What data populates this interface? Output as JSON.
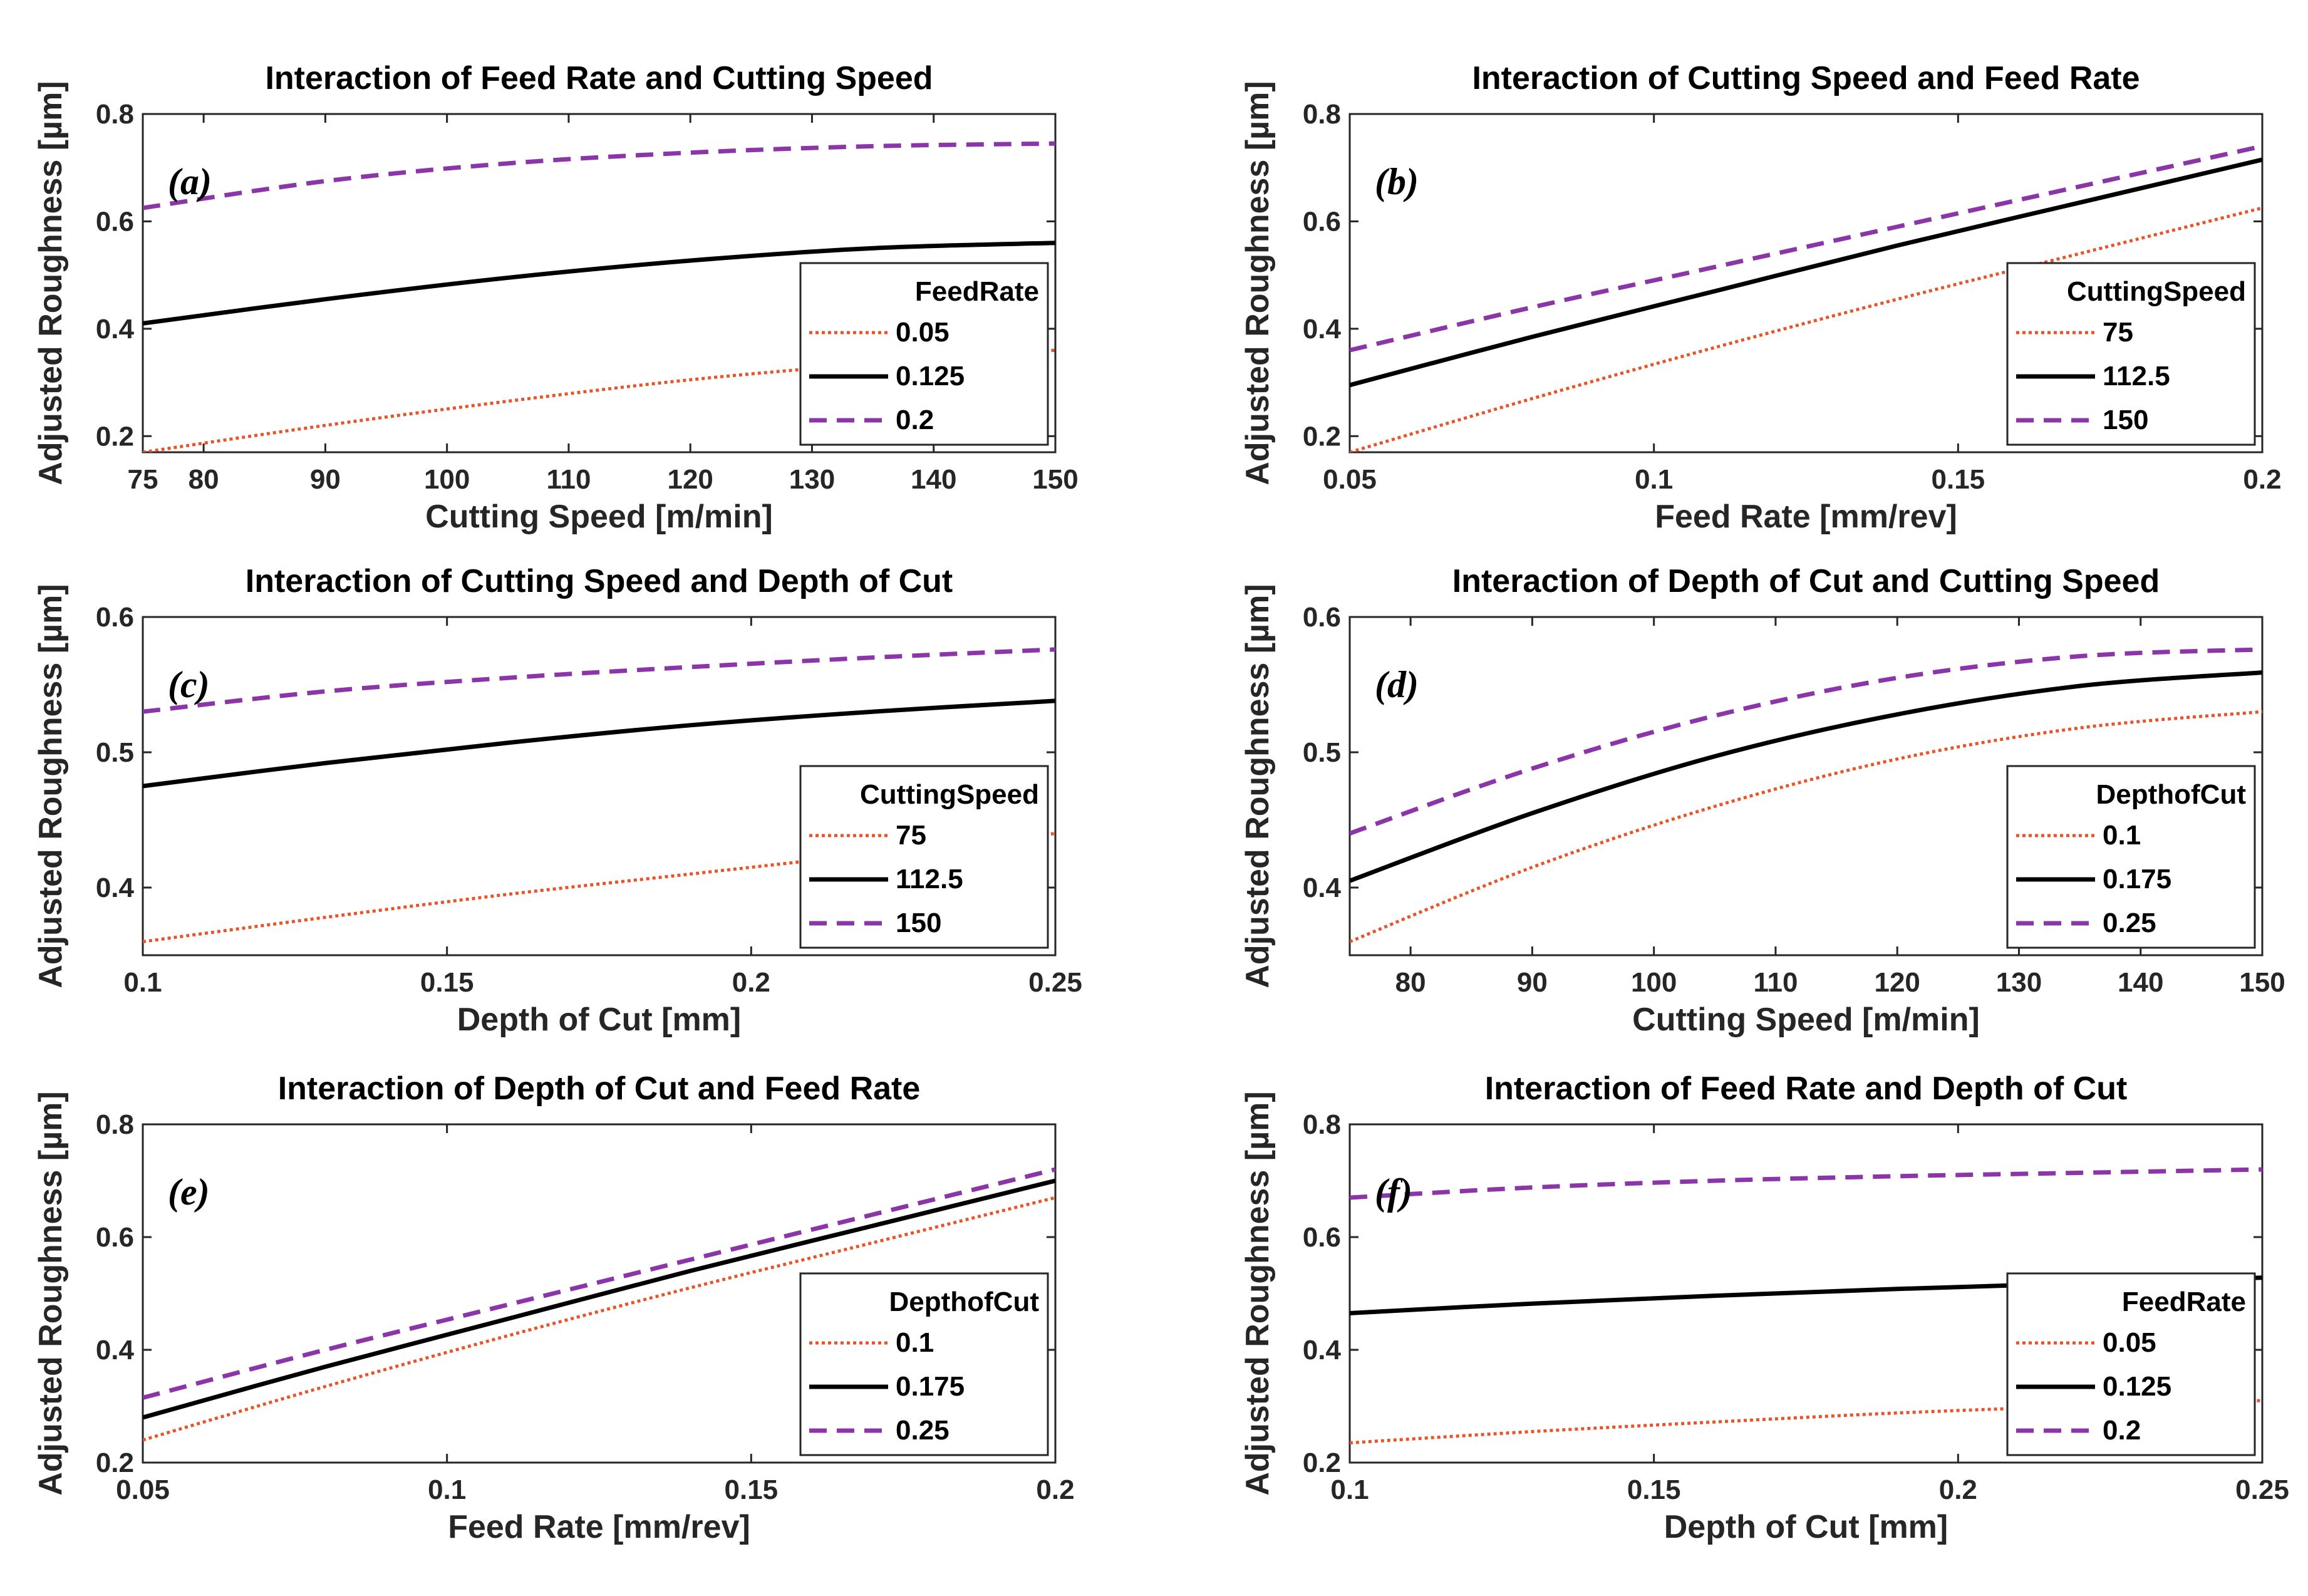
{
  "figure": {
    "ylabel_unit_note": "Adjusted Roughness [µm]"
  },
  "colors": {
    "orange": "#E8542A",
    "black": "#000000",
    "purple": "#8B35A8"
  },
  "chart_data": [
    {
      "type": "line",
      "panel": "(a)",
      "title": "Interaction of Feed Rate and Cutting Speed",
      "xlabel": "Cutting Speed [m/min]",
      "ylabel": "Adjusted Roughness [µm]",
      "xlim": [
        75,
        150
      ],
      "ylim": [
        0.17,
        0.8
      ],
      "xticks": [
        75,
        80,
        90,
        100,
        110,
        120,
        130,
        140,
        150
      ],
      "xtick_labels": [
        "75",
        "80",
        "90",
        "100",
        "110",
        "120",
        "130",
        "140",
        "150"
      ],
      "yticks": [
        0.2,
        0.4,
        0.6,
        0.8
      ],
      "ytick_labels": [
        "0.2",
        "0.4",
        "0.6",
        "0.8"
      ],
      "legend_title": "FeedRate",
      "legend_position": "lower-right",
      "x": [
        75,
        90,
        105,
        120,
        135,
        150
      ],
      "series": [
        {
          "name": "0.05",
          "style": "dotted",
          "color": "orange",
          "values": [
            0.17,
            0.22,
            0.265,
            0.305,
            0.335,
            0.36
          ]
        },
        {
          "name": "0.125",
          "style": "solid",
          "color": "black",
          "values": [
            0.41,
            0.455,
            0.495,
            0.527,
            0.55,
            0.56
          ]
        },
        {
          "name": "0.2",
          "style": "dashed",
          "color": "purple",
          "values": [
            0.625,
            0.675,
            0.708,
            0.728,
            0.74,
            0.745
          ]
        }
      ]
    },
    {
      "type": "line",
      "panel": "(b)",
      "title": "Interaction of Cutting Speed and Feed Rate",
      "xlabel": "Feed Rate [mm/rev]",
      "ylabel": "Adjusted Roughness [µm]",
      "xlim": [
        0.05,
        0.2
      ],
      "ylim": [
        0.17,
        0.8
      ],
      "xticks": [
        0.05,
        0.1,
        0.15,
        0.2
      ],
      "xtick_labels": [
        "0.05",
        "0.1",
        "0.15",
        "0.2"
      ],
      "yticks": [
        0.2,
        0.4,
        0.6,
        0.8
      ],
      "ytick_labels": [
        "0.2",
        "0.4",
        "0.6",
        "0.8"
      ],
      "legend_title": "CuttingSpeed",
      "legend_position": "lower-right",
      "x": [
        0.05,
        0.08,
        0.11,
        0.14,
        0.17,
        0.2
      ],
      "series": [
        {
          "name": "75",
          "style": "dotted",
          "color": "orange",
          "values": [
            0.17,
            0.27,
            0.365,
            0.455,
            0.54,
            0.625
          ]
        },
        {
          "name": "112.5",
          "style": "solid",
          "color": "black",
          "values": [
            0.295,
            0.385,
            0.47,
            0.555,
            0.635,
            0.715
          ]
        },
        {
          "name": "150",
          "style": "dashed",
          "color": "purple",
          "values": [
            0.36,
            0.44,
            0.515,
            0.59,
            0.665,
            0.74
          ]
        }
      ]
    },
    {
      "type": "line",
      "panel": "(c)",
      "title": "Interaction of Cutting Speed and Depth of Cut",
      "xlabel": "Depth of Cut [mm]",
      "ylabel": "Adjusted Roughness [µm]",
      "xlim": [
        0.1,
        0.25
      ],
      "ylim": [
        0.35,
        0.6
      ],
      "xticks": [
        0.1,
        0.15,
        0.2,
        0.25
      ],
      "xtick_labels": [
        "0.1",
        "0.15",
        "0.2",
        "0.25"
      ],
      "yticks": [
        0.4,
        0.5,
        0.6
      ],
      "ytick_labels": [
        "0.4",
        "0.5",
        "0.6"
      ],
      "legend_title": "CuttingSpeed",
      "legend_position": "lower-right",
      "x": [
        0.1,
        0.13,
        0.16,
        0.19,
        0.22,
        0.25
      ],
      "series": [
        {
          "name": "75",
          "style": "dotted",
          "color": "orange",
          "values": [
            0.36,
            0.378,
            0.395,
            0.41,
            0.425,
            0.44
          ]
        },
        {
          "name": "112.5",
          "style": "solid",
          "color": "black",
          "values": [
            0.475,
            0.492,
            0.507,
            0.52,
            0.53,
            0.538
          ]
        },
        {
          "name": "150",
          "style": "dashed",
          "color": "purple",
          "values": [
            0.53,
            0.545,
            0.555,
            0.563,
            0.57,
            0.576
          ]
        }
      ]
    },
    {
      "type": "line",
      "panel": "(d)",
      "title": "Interaction of Depth of Cut and Cutting Speed",
      "xlabel": "Cutting Speed [m/min]",
      "ylabel": "Adjusted Roughness [µm]",
      "xlim": [
        75,
        150
      ],
      "ylim": [
        0.35,
        0.6
      ],
      "xticks": [
        80,
        90,
        100,
        110,
        120,
        130,
        140,
        150
      ],
      "xtick_labels": [
        "80",
        "90",
        "100",
        "110",
        "120",
        "130",
        "140",
        "150"
      ],
      "yticks": [
        0.4,
        0.5,
        0.6
      ],
      "ytick_labels": [
        "0.4",
        "0.5",
        "0.6"
      ],
      "legend_title": "DepthofCut",
      "legend_position": "lower-right",
      "x": [
        75,
        90,
        105,
        120,
        135,
        150
      ],
      "series": [
        {
          "name": "0.1",
          "style": "dotted",
          "color": "orange",
          "values": [
            0.36,
            0.415,
            0.46,
            0.495,
            0.518,
            0.53
          ]
        },
        {
          "name": "0.175",
          "style": "solid",
          "color": "black",
          "values": [
            0.405,
            0.455,
            0.497,
            0.528,
            0.549,
            0.559
          ]
        },
        {
          "name": "0.25",
          "style": "dashed",
          "color": "purple",
          "values": [
            0.44,
            0.488,
            0.527,
            0.555,
            0.571,
            0.576
          ]
        }
      ]
    },
    {
      "type": "line",
      "panel": "(e)",
      "title": "Interaction of Depth of Cut and Feed Rate",
      "xlabel": "Feed Rate [mm/rev]",
      "ylabel": "Adjusted Roughness [µm]",
      "xlim": [
        0.05,
        0.2
      ],
      "ylim": [
        0.2,
        0.8
      ],
      "xticks": [
        0.05,
        0.1,
        0.15,
        0.2
      ],
      "xtick_labels": [
        "0.05",
        "0.1",
        "0.15",
        "0.2"
      ],
      "yticks": [
        0.2,
        0.4,
        0.6,
        0.8
      ],
      "ytick_labels": [
        "0.2",
        "0.4",
        "0.6",
        "0.8"
      ],
      "legend_title": "DepthofCut",
      "legend_position": "lower-right",
      "x": [
        0.05,
        0.08,
        0.11,
        0.14,
        0.17,
        0.2
      ],
      "series": [
        {
          "name": "0.1",
          "style": "dotted",
          "color": "orange",
          "values": [
            0.24,
            0.335,
            0.425,
            0.51,
            0.59,
            0.67
          ]
        },
        {
          "name": "0.175",
          "style": "solid",
          "color": "black",
          "values": [
            0.28,
            0.37,
            0.455,
            0.54,
            0.62,
            0.7
          ]
        },
        {
          "name": "0.25",
          "style": "dashed",
          "color": "purple",
          "values": [
            0.315,
            0.4,
            0.48,
            0.56,
            0.64,
            0.72
          ]
        }
      ]
    },
    {
      "type": "line",
      "panel": "(f)",
      "title": "Interaction of Feed Rate and Depth of Cut",
      "xlabel": "Depth of Cut [mm]",
      "ylabel": "Adjusted Roughness [µm]",
      "xlim": [
        0.1,
        0.25
      ],
      "ylim": [
        0.2,
        0.8
      ],
      "xticks": [
        0.1,
        0.15,
        0.2,
        0.25
      ],
      "xtick_labels": [
        "0.1",
        "0.15",
        "0.2",
        "0.25"
      ],
      "yticks": [
        0.2,
        0.4,
        0.6,
        0.8
      ],
      "ytick_labels": [
        "0.2",
        "0.4",
        "0.6",
        "0.8"
      ],
      "legend_title": "FeedRate",
      "legend_position": "lower-right",
      "x": [
        0.1,
        0.13,
        0.16,
        0.19,
        0.22,
        0.25
      ],
      "series": [
        {
          "name": "0.05",
          "style": "dotted",
          "color": "orange",
          "values": [
            0.235,
            0.255,
            0.272,
            0.288,
            0.3,
            0.31
          ]
        },
        {
          "name": "0.125",
          "style": "solid",
          "color": "black",
          "values": [
            0.465,
            0.482,
            0.496,
            0.508,
            0.518,
            0.528
          ]
        },
        {
          "name": "0.2",
          "style": "dashed",
          "color": "purple",
          "values": [
            0.67,
            0.688,
            0.7,
            0.708,
            0.714,
            0.72
          ]
        }
      ]
    }
  ]
}
